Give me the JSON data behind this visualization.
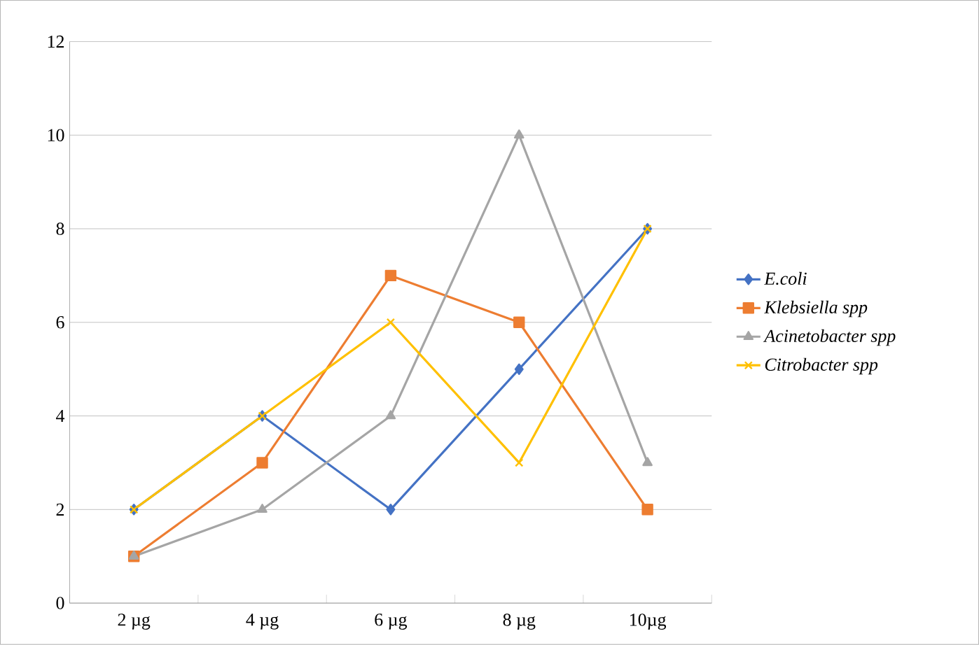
{
  "chart_data": {
    "type": "line",
    "categories": [
      "2 µg",
      "4 µg",
      "6 µg",
      "8 µg",
      "10µg"
    ],
    "series": [
      {
        "name": "E.coli",
        "color": "#4472c4",
        "marker": "diamond",
        "values": [
          2,
          4,
          2,
          5,
          8
        ]
      },
      {
        "name": "Klebsiella spp",
        "color": "#ed7d31",
        "marker": "square",
        "values": [
          1,
          3,
          7,
          6,
          2
        ]
      },
      {
        "name": "Acinetobacter spp",
        "color": "#a5a5a5",
        "marker": "triangle",
        "values": [
          1,
          2,
          4,
          10,
          3
        ]
      },
      {
        "name": "Citrobacter spp",
        "color": "#ffc000",
        "marker": "cross",
        "values": [
          2,
          4,
          6,
          3,
          8
        ]
      }
    ],
    "ylim": [
      0,
      12
    ],
    "yticks": [
      0,
      2,
      4,
      6,
      8,
      10,
      12
    ],
    "grid": "y",
    "legend": "right"
  }
}
